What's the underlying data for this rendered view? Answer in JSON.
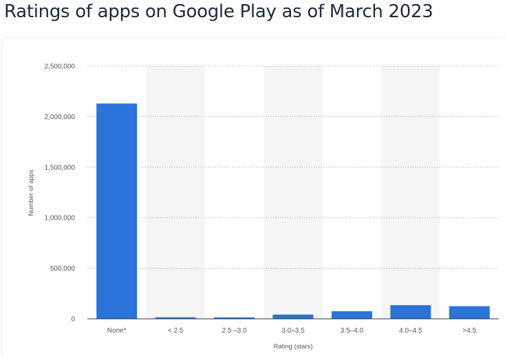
{
  "page": {
    "title": "Ratings of apps on Google Play as of March 2023"
  },
  "chart_data": {
    "type": "bar",
    "categories": [
      "None*",
      "< 2.5",
      "2.5 –3.0",
      "3.0–3.5",
      "3.5–4.0",
      "4.0–4.5",
      ">4.5"
    ],
    "values": [
      2130000,
      15000,
      14000,
      42000,
      75000,
      135000,
      125000
    ],
    "xlabel": "Rating (stars)",
    "ylabel": "Number of apps",
    "ylim": [
      0,
      2500000
    ],
    "yticks": [
      0,
      500000,
      1000000,
      1500000,
      2000000,
      2500000
    ],
    "ytick_labels": [
      "0",
      "500,000",
      "1,000,000",
      "1,500,000",
      "2,000,000",
      "2,500,000"
    ],
    "grid": true,
    "bar_color": "#2b74d9",
    "band_color": "#f5f5f5"
  }
}
